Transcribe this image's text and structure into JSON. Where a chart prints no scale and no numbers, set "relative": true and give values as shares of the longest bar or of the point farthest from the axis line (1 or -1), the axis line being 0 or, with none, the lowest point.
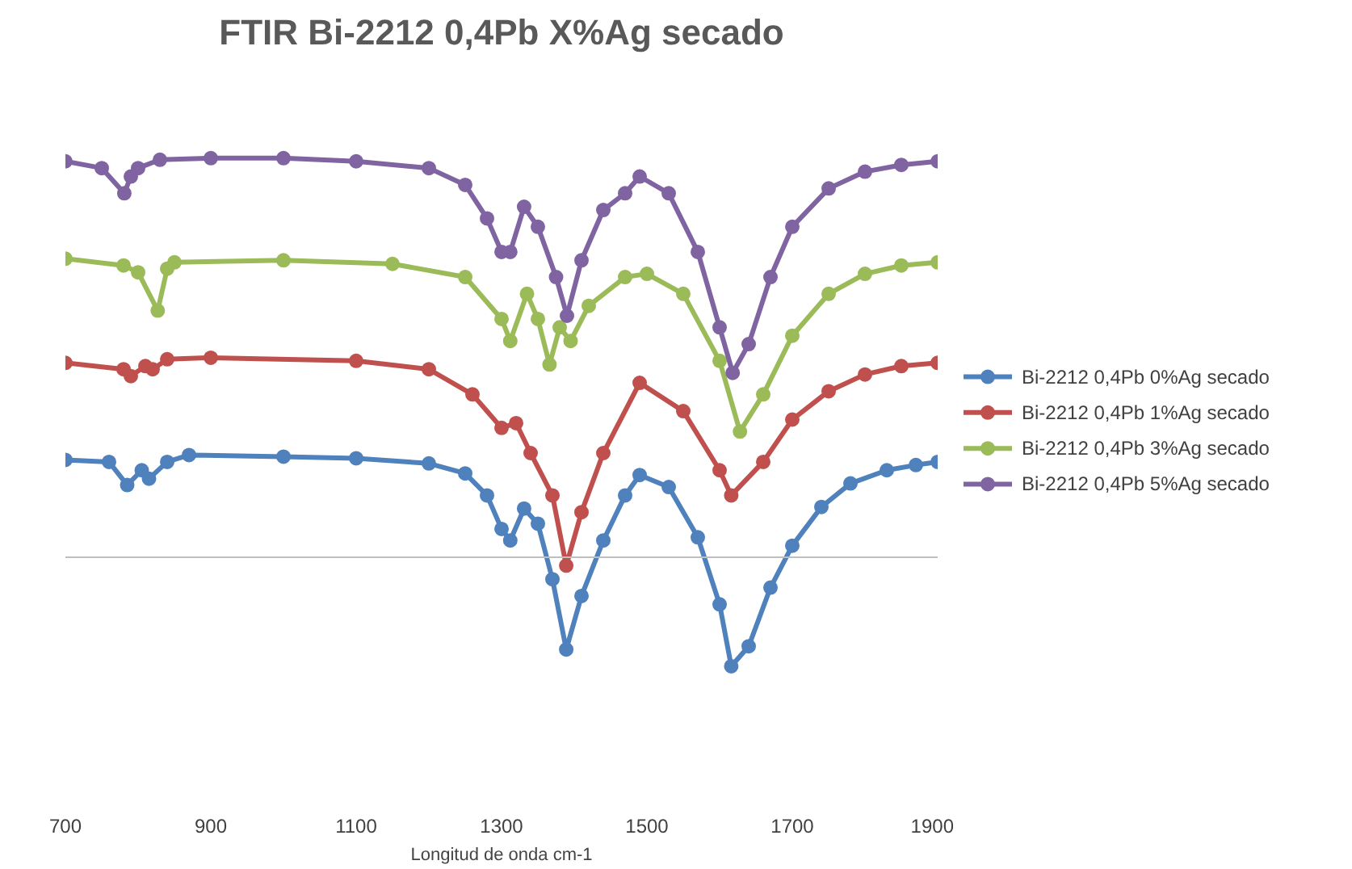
{
  "chart_data": {
    "type": "line",
    "title": "FTIR Bi-2212 0,4Pb X%Ag secado",
    "xlabel": "Longitud de onda cm-1",
    "relative": true,
    "xlim": [
      700,
      1900
    ],
    "xticks": [
      700,
      900,
      1100,
      1300,
      1500,
      1700,
      1900
    ],
    "grid": false,
    "legend": "right",
    "marker": "circle",
    "line_style": "solid",
    "series": [
      {
        "name": "Bi-2212 0,4Pb 0%Ag secado",
        "color": "#4f81bd",
        "x": [
          700,
          760,
          785,
          805,
          815,
          840,
          870,
          1000,
          1100,
          1200,
          1250,
          1280,
          1300,
          1312,
          1331,
          1350,
          1370,
          1389,
          1410,
          1440,
          1470,
          1490,
          1530,
          1570,
          1600,
          1616,
          1640,
          1670,
          1700,
          1740,
          1780,
          1830,
          1870,
          1900
        ],
        "values": [
          0.244,
          0.239,
          0.181,
          0.218,
          0.197,
          0.239,
          0.256,
          0.252,
          0.248,
          0.235,
          0.21,
          0.155,
          0.071,
          0.042,
          0.122,
          0.084,
          -0.055,
          -0.231,
          -0.097,
          0.042,
          0.155,
          0.206,
          0.176,
          0.05,
          -0.118,
          -0.273,
          -0.223,
          -0.076,
          0.029,
          0.126,
          0.185,
          0.218,
          0.231,
          0.239
        ]
      },
      {
        "name": "Bi-2212 0,4Pb 1%Ag secado",
        "color": "#c0504d",
        "x": [
          700,
          780,
          790,
          810,
          820,
          840,
          900,
          1100,
          1200,
          1260,
          1300,
          1320,
          1340,
          1370,
          1389,
          1410,
          1440,
          1490,
          1550,
          1600,
          1616,
          1660,
          1700,
          1750,
          1800,
          1850,
          1900
        ],
        "values": [
          0.487,
          0.471,
          0.454,
          0.479,
          0.471,
          0.496,
          0.5,
          0.492,
          0.471,
          0.408,
          0.324,
          0.336,
          0.261,
          0.155,
          -0.021,
          0.113,
          0.261,
          0.437,
          0.366,
          0.218,
          0.155,
          0.239,
          0.345,
          0.416,
          0.458,
          0.479,
          0.487
        ]
      },
      {
        "name": "Bi-2212 0,4Pb 3%Ag secado",
        "color": "#9bbb59",
        "x": [
          700,
          780,
          800,
          827,
          840,
          850,
          1000,
          1150,
          1250,
          1300,
          1312,
          1335,
          1350,
          1366,
          1380,
          1395,
          1420,
          1470,
          1500,
          1550,
          1600,
          1628,
          1660,
          1700,
          1750,
          1800,
          1850,
          1900
        ],
        "values": [
          0.748,
          0.731,
          0.714,
          0.618,
          0.723,
          0.739,
          0.744,
          0.735,
          0.702,
          0.597,
          0.542,
          0.66,
          0.597,
          0.483,
          0.576,
          0.542,
          0.63,
          0.702,
          0.71,
          0.66,
          0.492,
          0.315,
          0.408,
          0.555,
          0.66,
          0.71,
          0.731,
          0.739
        ]
      },
      {
        "name": "Bi-2212 0,4Pb 5%Ag secado",
        "color": "#8064a2",
        "x": [
          700,
          750,
          781,
          790,
          800,
          830,
          900,
          1000,
          1100,
          1200,
          1250,
          1280,
          1300,
          1312,
          1331,
          1350,
          1375,
          1390,
          1410,
          1440,
          1470,
          1490,
          1530,
          1570,
          1600,
          1618,
          1640,
          1670,
          1700,
          1750,
          1800,
          1850,
          1900
        ],
        "values": [
          0.992,
          0.975,
          0.912,
          0.954,
          0.975,
          0.996,
          1,
          1,
          0.992,
          0.975,
          0.933,
          0.849,
          0.765,
          0.765,
          0.878,
          0.828,
          0.702,
          0.605,
          0.744,
          0.87,
          0.912,
          0.954,
          0.912,
          0.765,
          0.576,
          0.462,
          0.534,
          0.702,
          0.828,
          0.924,
          0.966,
          0.983,
          0.992
        ]
      }
    ]
  }
}
